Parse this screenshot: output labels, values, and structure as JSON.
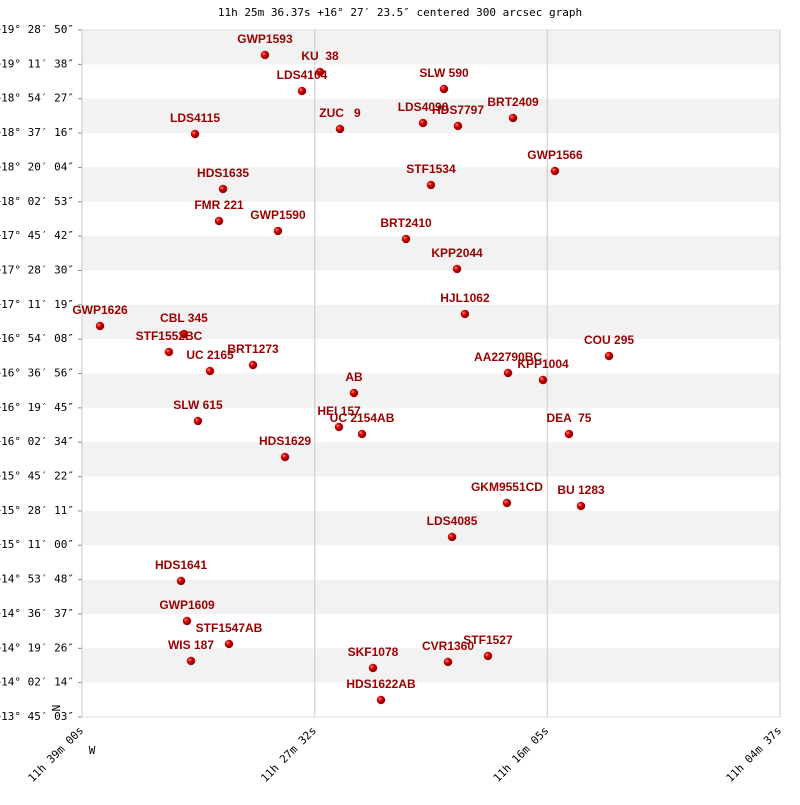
{
  "chart_data": {
    "type": "scatter",
    "title": "11h 25m 36.37s +16° 27′ 23.5″ centered 300 arcsec graph",
    "north_label": "N",
    "west_label": "W",
    "color": "#cc0000",
    "label_color": "#990000",
    "xlim": [
      11.65,
      11.076944
    ],
    "xticks": [
      {
        "value": 11.65,
        "label": "11h 39m 00s"
      },
      {
        "value": 11.458889,
        "label": "11h 27m 32s"
      },
      {
        "value": 11.268056,
        "label": "11h 16m 05s"
      },
      {
        "value": 11.076944,
        "label": "11h 04m 37s"
      }
    ],
    "ylim": [
      13.75083,
      19.48056
    ],
    "yticks": [
      {
        "value": 19.48056,
        "label": "+19° 28′ 50″"
      },
      {
        "value": 19.19389,
        "label": "+19° 11′ 38″"
      },
      {
        "value": 18.9075,
        "label": "+18° 54′ 27″"
      },
      {
        "value": 18.62111,
        "label": "+18° 37′ 16″"
      },
      {
        "value": 18.33444,
        "label": "+18° 20′ 04″"
      },
      {
        "value": 18.04806,
        "label": "+18° 02′ 53″"
      },
      {
        "value": 17.76167,
        "label": "+17° 45′ 42″"
      },
      {
        "value": 17.475,
        "label": "+17° 28′ 30″"
      },
      {
        "value": 17.18861,
        "label": "+17° 11′ 19″"
      },
      {
        "value": 16.90222,
        "label": "+16° 54′ 08″"
      },
      {
        "value": 16.61556,
        "label": "+16° 36′ 56″"
      },
      {
        "value": 16.32917,
        "label": "+16° 19′ 45″"
      },
      {
        "value": 16.04278,
        "label": "+16° 02′ 34″"
      },
      {
        "value": 15.75611,
        "label": "+15° 45′ 22″"
      },
      {
        "value": 15.46972,
        "label": "+15° 28′ 11″"
      },
      {
        "value": 15.18333,
        "label": "+15° 11′ 00″"
      },
      {
        "value": 14.89667,
        "label": "+14° 53′ 48″"
      },
      {
        "value": 14.61028,
        "label": "+14° 36′ 37″"
      },
      {
        "value": 14.32389,
        "label": "+14° 19′ 26″"
      },
      {
        "value": 14.03722,
        "label": "+14° 02′ 14″"
      },
      {
        "value": 13.75083,
        "label": "+13° 45′ 03″"
      }
    ],
    "points": [
      {
        "name": "GWP1593",
        "x": 11.4998,
        "y": 19.2721
      },
      {
        "name": "KU  38",
        "x": 11.4546,
        "y": 19.1303
      },
      {
        "name": "LDS4104",
        "x": 11.4694,
        "y": 18.9718
      },
      {
        "name": "SLW 590",
        "x": 11.3528,
        "y": 18.9885
      },
      {
        "name": "LDS4090",
        "x": 11.37,
        "y": 18.705
      },
      {
        "name": "HDS7797",
        "x": 11.3413,
        "y": 18.68
      },
      {
        "name": "BRT2409",
        "x": 11.2961,
        "y": 18.7467
      },
      {
        "name": "ZUC   9",
        "x": 11.4382,
        "y": 18.6549
      },
      {
        "name": "LDS4115",
        "x": 11.5572,
        "y": 18.6132
      },
      {
        "name": "GWP1566",
        "x": 11.2617,
        "y": 18.3046
      },
      {
        "name": "STF1534",
        "x": 11.3635,
        "y": 18.1878
      },
      {
        "name": "HDS1635",
        "x": 11.5342,
        "y": 18.1545
      },
      {
        "name": "FMR 221",
        "x": 11.5375,
        "y": 17.8876
      },
      {
        "name": "GWP1590",
        "x": 11.4891,
        "y": 17.8042
      },
      {
        "name": "BRT2410",
        "x": 11.384,
        "y": 17.7375
      },
      {
        "name": "KPP2044",
        "x": 11.3421,
        "y": 17.4873
      },
      {
        "name": "HJL1062",
        "x": 11.3356,
        "y": 17.112
      },
      {
        "name": "GWP1626",
        "x": 11.6352,
        "y": 17.0119
      },
      {
        "name": "CBL 345",
        "x": 11.5663,
        "y": 16.9452
      },
      {
        "name": "STF1552BC",
        "x": 11.5786,
        "y": 16.7951
      },
      {
        "name": "BRT1273",
        "x": 11.5096,
        "y": 16.6867
      },
      {
        "name": "UC 2165",
        "x": 11.5449,
        "y": 16.6366
      },
      {
        "name": "AA22790BC",
        "x": 11.3002,
        "y": 16.6199
      },
      {
        "name": "KPP1004",
        "x": 11.2715,
        "y": 16.5616
      },
      {
        "name": "COU 295",
        "x": 11.2173,
        "y": 16.7617
      },
      {
        "name": "AB",
        "x": 11.4267,
        "y": 16.4531
      },
      {
        "name": "SLW 615",
        "x": 11.5548,
        "y": 16.2196
      },
      {
        "name": "HEI 157",
        "x": 11.439,
        "y": 16.1695
      },
      {
        "name": "UC 2154AB",
        "x": 11.4201,
        "y": 16.1111
      },
      {
        "name": "DEA  75",
        "x": 11.2502,
        "y": 16.1111
      },
      {
        "name": "HDS1629",
        "x": 11.4833,
        "y": 15.9193
      },
      {
        "name": "GKM9551CD",
        "x": 11.3011,
        "y": 15.5358
      },
      {
        "name": "BU 1283",
        "x": 11.2403,
        "y": 15.5108
      },
      {
        "name": "LDS4085",
        "x": 11.3462,
        "y": 15.2522
      },
      {
        "name": "HDS1641",
        "x": 11.5687,
        "y": 14.8853
      },
      {
        "name": "GWP1609",
        "x": 11.5638,
        "y": 14.5516
      },
      {
        "name": "STF1547AB",
        "x": 11.5293,
        "y": 14.3598
      },
      {
        "name": "WIS 187",
        "x": 11.5605,
        "y": 14.2181
      },
      {
        "name": "STF1527",
        "x": 11.3167,
        "y": 14.2598
      },
      {
        "name": "CVR1360",
        "x": 11.3495,
        "y": 14.2098
      },
      {
        "name": "SKF1078",
        "x": 11.4111,
        "y": 14.1597
      },
      {
        "name": "HDS1622AB",
        "x": 11.4045,
        "y": 13.8927
      }
    ]
  }
}
